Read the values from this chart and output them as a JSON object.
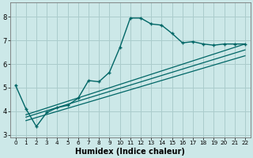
{
  "xlabel": "Humidex (Indice chaleur)",
  "bg_color": "#cce8e8",
  "grid_color": "#aacccc",
  "line_color": "#006666",
  "xlim": [
    -0.5,
    22.5
  ],
  "ylim": [
    2.9,
    8.6
  ],
  "yticks": [
    3,
    4,
    5,
    6,
    7,
    8
  ],
  "xticks": [
    0,
    1,
    2,
    3,
    4,
    5,
    6,
    7,
    8,
    9,
    10,
    11,
    12,
    13,
    14,
    15,
    16,
    17,
    18,
    19,
    20,
    21,
    22
  ],
  "series_main": {
    "x": [
      0,
      1,
      2,
      3,
      4,
      5,
      6,
      7,
      8,
      9,
      10,
      11,
      12,
      13,
      14,
      15,
      16,
      17,
      18,
      19,
      20,
      21,
      22
    ],
    "y": [
      5.1,
      4.1,
      3.35,
      3.95,
      4.15,
      4.25,
      4.55,
      5.3,
      5.25,
      5.65,
      6.7,
      7.95,
      7.95,
      7.7,
      7.65,
      7.3,
      6.9,
      6.95,
      6.85,
      6.8,
      6.85,
      6.85,
      6.85
    ]
  },
  "series_linear": [
    {
      "x": [
        1,
        22
      ],
      "y": [
        3.85,
        6.85
      ]
    },
    {
      "x": [
        1,
        22
      ],
      "y": [
        3.75,
        6.6
      ]
    },
    {
      "x": [
        1,
        22
      ],
      "y": [
        3.6,
        6.35
      ]
    }
  ],
  "xlabel_fontsize": 7,
  "tick_fontsize": 6
}
